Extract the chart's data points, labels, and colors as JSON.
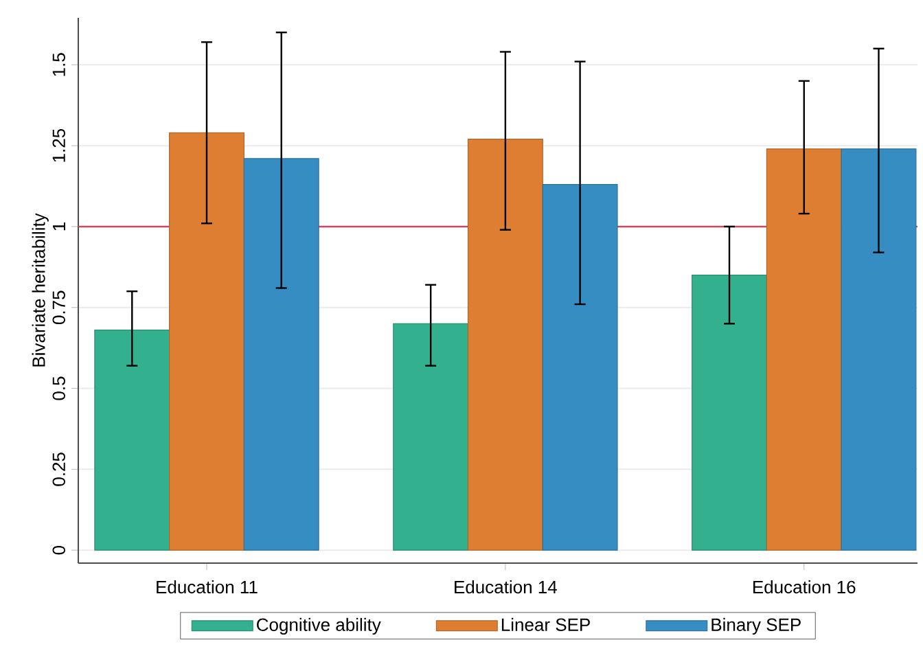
{
  "chart_data": {
    "type": "bar",
    "ylabel": "Bivariate heritability",
    "categories": [
      "Education 11",
      "Education 14",
      "Education 16"
    ],
    "series": [
      {
        "name": "Cognitive ability",
        "color": "#33b08e",
        "values": [
          0.68,
          0.7,
          0.85
        ],
        "errors": [
          [
            0.57,
            0.8
          ],
          [
            0.57,
            0.82
          ],
          [
            0.7,
            1.0
          ]
        ]
      },
      {
        "name": "Linear SEP",
        "color": "#de7e33",
        "values": [
          1.29,
          1.27,
          1.24
        ],
        "errors": [
          [
            1.01,
            1.57
          ],
          [
            0.99,
            1.54
          ],
          [
            1.04,
            1.45
          ]
        ]
      },
      {
        "name": "Binary SEP",
        "color": "#358dc2",
        "values": [
          1.21,
          1.13,
          1.24
        ],
        "errors": [
          [
            0.81,
            1.6
          ],
          [
            0.76,
            1.51
          ],
          [
            0.92,
            1.55
          ]
        ]
      }
    ],
    "ylim": [
      -0.04,
      1.645
    ],
    "yticks": [
      0,
      0.25,
      0.5,
      0.75,
      1,
      1.25,
      1.5
    ],
    "ref_lines": [
      {
        "axis": "y",
        "value": 1,
        "color": "#d4435f"
      }
    ],
    "grid": "y",
    "legend": "bottom"
  }
}
